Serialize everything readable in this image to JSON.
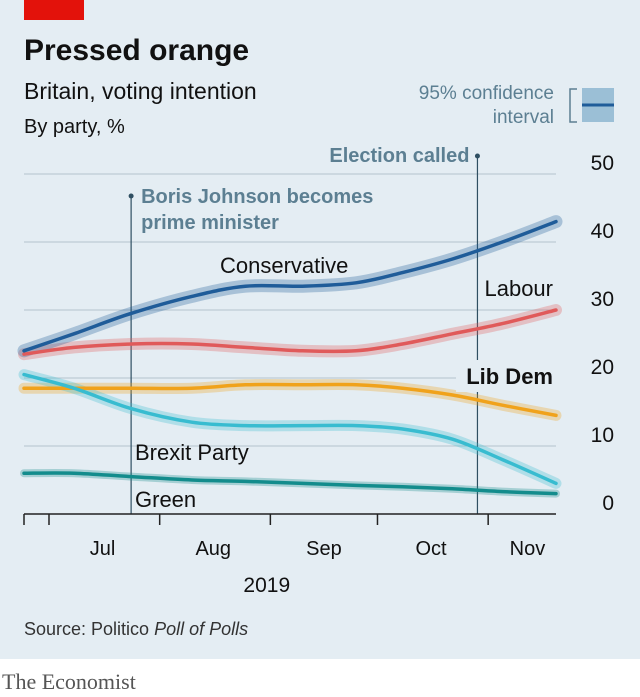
{
  "chart_data": {
    "type": "line",
    "title": "Pressed orange",
    "subtitle": "Britain, voting intention",
    "ylabel": "By party, %",
    "ylim": [
      0,
      50
    ],
    "y_ticks": [
      "0",
      "10",
      "20",
      "30",
      "40",
      "50"
    ],
    "x_ticks": [
      "Jul",
      "Aug",
      "Sep",
      "Oct",
      "Nov"
    ],
    "x_year": "2019",
    "x_domain": [
      "2019-06-24",
      "2019-11-20"
    ],
    "grid": true,
    "legend": {
      "label_line1": "95% confidence",
      "label_line2": "interval",
      "placement": "top-right"
    },
    "annotations": [
      {
        "label_line1": "Boris Johnson becomes",
        "label_line2": "prime minister",
        "date": "2019-07-24"
      },
      {
        "label_line1": "Election called",
        "label_line2": "",
        "date": "2019-10-29"
      }
    ],
    "series": [
      {
        "name": "Conservative",
        "color": "#1f5c99",
        "x": [
          "2019-06-24",
          "2019-07-08",
          "2019-07-24",
          "2019-08-10",
          "2019-08-25",
          "2019-09-10",
          "2019-09-25",
          "2019-10-08",
          "2019-10-22",
          "2019-11-05",
          "2019-11-20"
        ],
        "values": [
          24,
          26.5,
          29.5,
          32,
          33.5,
          33.5,
          34,
          35.5,
          37.5,
          40,
          43
        ]
      },
      {
        "name": "Labour",
        "color": "#e05a5a",
        "x": [
          "2019-06-24",
          "2019-07-08",
          "2019-07-24",
          "2019-08-10",
          "2019-08-25",
          "2019-09-10",
          "2019-09-25",
          "2019-10-08",
          "2019-10-22",
          "2019-11-05",
          "2019-11-20"
        ],
        "values": [
          23.5,
          24.5,
          25,
          25,
          24.5,
          24,
          24,
          25,
          26.5,
          28,
          30
        ]
      },
      {
        "name": "Lib Dem",
        "color": "#f0a21b",
        "x": [
          "2019-06-24",
          "2019-07-08",
          "2019-07-24",
          "2019-08-10",
          "2019-08-25",
          "2019-09-10",
          "2019-09-25",
          "2019-10-08",
          "2019-10-22",
          "2019-11-05",
          "2019-11-20"
        ],
        "values": [
          18.5,
          18.5,
          18.5,
          18.5,
          19,
          19,
          19,
          18.5,
          17.5,
          16,
          14.5
        ]
      },
      {
        "name": "Brexit Party",
        "color": "#38bcd0",
        "x": [
          "2019-06-24",
          "2019-07-08",
          "2019-07-24",
          "2019-08-10",
          "2019-08-25",
          "2019-09-10",
          "2019-09-25",
          "2019-10-08",
          "2019-10-22",
          "2019-11-05",
          "2019-11-20"
        ],
        "values": [
          20.5,
          18.5,
          15.5,
          13.5,
          13,
          13,
          13,
          12.5,
          11,
          8,
          4.5
        ]
      },
      {
        "name": "Green",
        "color": "#138c8c",
        "x": [
          "2019-06-24",
          "2019-07-08",
          "2019-07-24",
          "2019-08-10",
          "2019-08-25",
          "2019-09-10",
          "2019-09-25",
          "2019-10-08",
          "2019-10-22",
          "2019-11-05",
          "2019-11-20"
        ],
        "values": [
          6,
          6,
          5.5,
          5,
          4.8,
          4.5,
          4.2,
          4,
          3.7,
          3.3,
          3
        ]
      }
    ]
  },
  "source": {
    "prefix": "Source: Politico ",
    "italic": "Poll of Polls"
  },
  "brand": "The Economist",
  "colors": {
    "background": "#e4edf3",
    "red_tab": "#e3120b",
    "annotation_text": "#5c7f92",
    "annotation_line": "#2f4f62",
    "gridline": "#b3c3cd",
    "axis": "#222222",
    "text": "#111111"
  }
}
